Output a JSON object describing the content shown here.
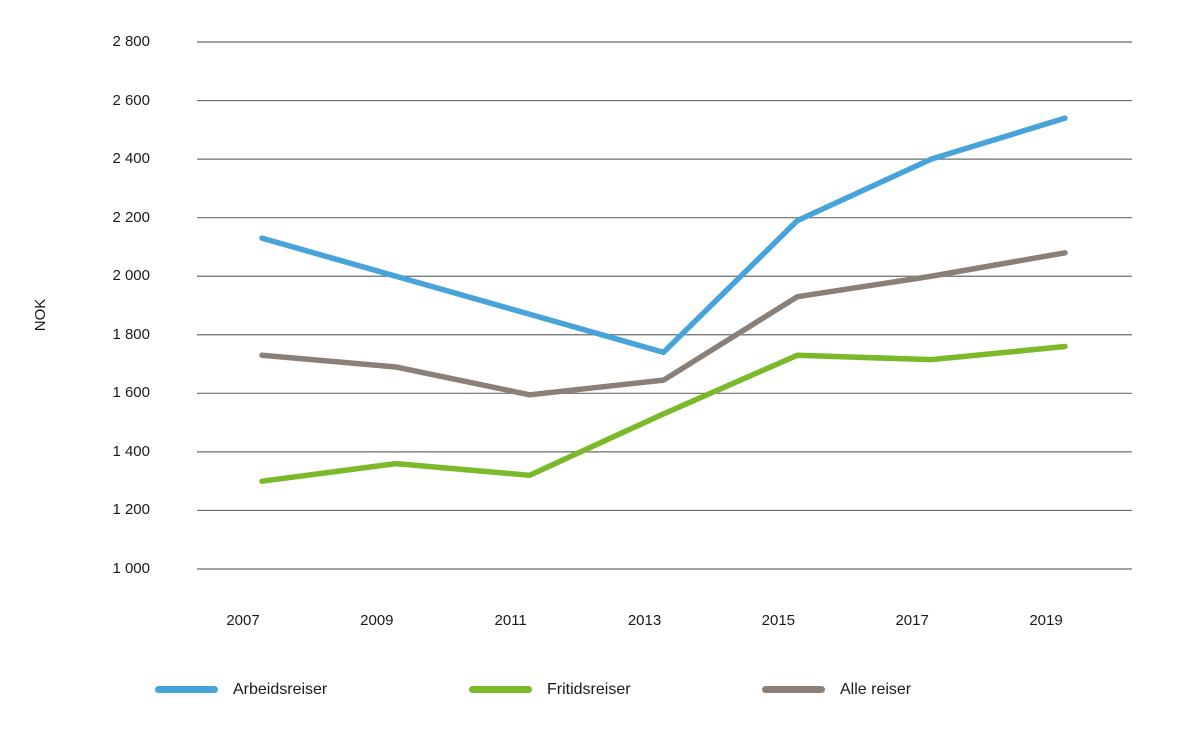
{
  "chart_data": {
    "type": "line",
    "title": "",
    "ylabel": "NOK",
    "xlabel": "",
    "categories": [
      "2007",
      "2009",
      "2011",
      "2013",
      "2015",
      "2017",
      "2019"
    ],
    "ylim": [
      1000,
      2800
    ],
    "yticks": [
      1000,
      1200,
      1400,
      1600,
      1800,
      2000,
      2200,
      2400,
      2600,
      2800
    ],
    "grid": true,
    "legend_position": "bottom",
    "series": [
      {
        "name": "Arbeidsreiser",
        "color": "#47a3d9",
        "values": [
          2130,
          2000,
          1870,
          1740,
          2190,
          2400,
          2540
        ]
      },
      {
        "name": "Fritidsreiser",
        "color": "#7cb92a",
        "values": [
          1300,
          1360,
          1320,
          1530,
          1730,
          1715,
          1760
        ]
      },
      {
        "name": "Alle reiser",
        "color": "#8b8077",
        "values": [
          1730,
          1690,
          1595,
          1645,
          1930,
          2000,
          2080
        ]
      }
    ]
  },
  "colors": {
    "background": "#ffffff",
    "gridline": "#6b6b6b",
    "text": "#1a1a1a"
  }
}
